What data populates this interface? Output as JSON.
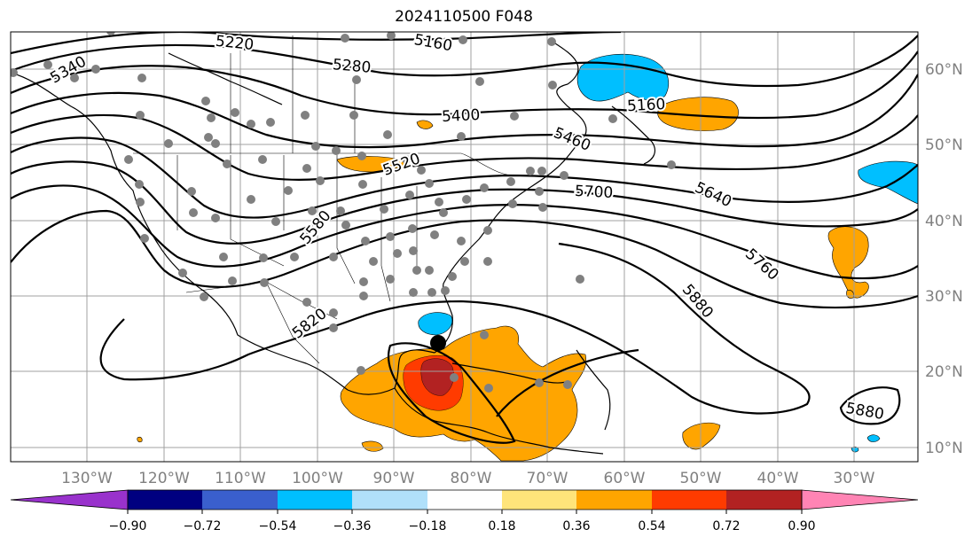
{
  "title": "2024110500 F048",
  "map": {
    "type": "geopotential height contours with shaded anomaly",
    "projection": "plate carree",
    "lon_range": [
      -135,
      -20
    ],
    "lat_range": [
      7.5,
      65
    ],
    "grid": true,
    "colors": {
      "contour": "#000000",
      "grid": "#a0a0a0",
      "station": "#808080",
      "storm_center": "#000000"
    },
    "lat_labels": [
      "60°N",
      "50°N",
      "40°N",
      "30°N",
      "20°N",
      "10°N"
    ],
    "lon_labels": [
      "130°W",
      "120°W",
      "110°W",
      "100°W",
      "90°W",
      "80°W",
      "70°W",
      "60°W",
      "50°W",
      "40°W",
      "30°W"
    ],
    "contour_labels": [
      "5220",
      "5160",
      "5340",
      "5280",
      "5160",
      "5400",
      "5460",
      "5520",
      "5700",
      "5640",
      "5580",
      "5760",
      "5880",
      "5820",
      "5880"
    ],
    "storm_center_label": "storm-center-marker"
  },
  "colorbar": {
    "ticks": [
      "−0.90",
      "−0.72",
      "−0.54",
      "−0.36",
      "−0.18",
      "0.18",
      "0.36",
      "0.54",
      "0.72",
      "0.90"
    ],
    "colors": [
      "#9932cc",
      "#000080",
      "#3a5fcd",
      "#00bfff",
      "#b0e0fa",
      "#ffffff",
      "#ffe47a",
      "#ffa500",
      "#ff3b00",
      "#b22222",
      "#ff84b4"
    ],
    "extend": "both"
  }
}
